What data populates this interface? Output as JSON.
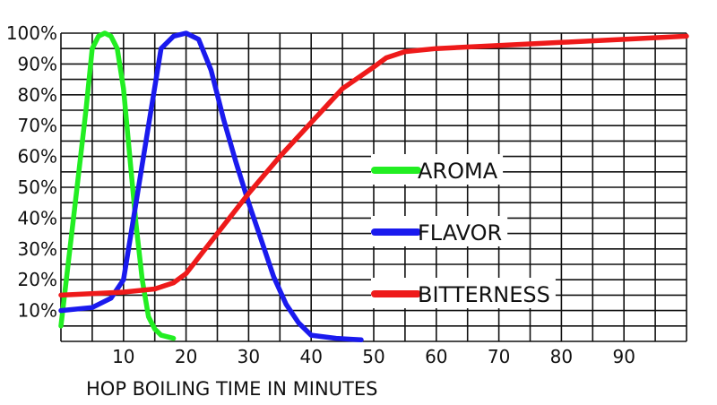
{
  "chart_data": {
    "type": "line",
    "title": "",
    "xlabel": "HOP BOILING TIME IN MINUTES",
    "ylabel": "",
    "xlim": [
      0,
      100
    ],
    "ylim": [
      0,
      100
    ],
    "x_ticks": [
      {
        "value": 10,
        "label": "10"
      },
      {
        "value": 20,
        "label": "20"
      },
      {
        "value": 30,
        "label": "30"
      },
      {
        "value": 40,
        "label": "40"
      },
      {
        "value": 50,
        "label": "50"
      },
      {
        "value": 60,
        "label": "60"
      },
      {
        "value": 70,
        "label": "70"
      },
      {
        "value": 80,
        "label": "80"
      },
      {
        "value": 90,
        "label": "90"
      }
    ],
    "y_ticks": [
      {
        "value": 10,
        "label": "10%"
      },
      {
        "value": 20,
        "label": "20%"
      },
      {
        "value": 30,
        "label": "30%"
      },
      {
        "value": 40,
        "label": "40%"
      },
      {
        "value": 50,
        "label": "50%"
      },
      {
        "value": 60,
        "label": "60%"
      },
      {
        "value": 70,
        "label": "70%"
      },
      {
        "value": 80,
        "label": "80%"
      },
      {
        "value": 90,
        "label": "90%"
      },
      {
        "value": 100,
        "label": "100%"
      }
    ],
    "grid": true,
    "legend_position": "center-right",
    "series": [
      {
        "name": "AROMA",
        "color": "#22ee22",
        "x": [
          0,
          2,
          4,
          5,
          6,
          7,
          8,
          9,
          10,
          11,
          12,
          13,
          14,
          15,
          16,
          18
        ],
        "y": [
          5,
          40,
          75,
          95,
          99,
          100,
          99,
          95,
          82,
          60,
          38,
          20,
          8,
          4,
          2,
          1
        ]
      },
      {
        "name": "FLAVOR",
        "color": "#1a1aee",
        "x": [
          0,
          5,
          8,
          10,
          12,
          14,
          16,
          18,
          20,
          22,
          24,
          26,
          28,
          30,
          32,
          34,
          36,
          38,
          40,
          44,
          48
        ],
        "y": [
          10,
          11,
          14,
          20,
          45,
          70,
          95,
          99,
          100,
          98,
          88,
          72,
          58,
          45,
          33,
          21,
          12,
          6,
          2,
          1,
          0.5
        ]
      },
      {
        "name": "BITTERNESS",
        "color": "#ee1a1a",
        "x": [
          0,
          10,
          15,
          18,
          20,
          25,
          30,
          35,
          40,
          45,
          50,
          52,
          55,
          60,
          70,
          80,
          90,
          100
        ],
        "y": [
          15,
          16,
          17,
          19,
          22,
          35,
          48,
          60,
          71,
          82,
          89,
          92,
          94,
          95,
          96,
          97,
          98,
          99
        ]
      }
    ]
  }
}
